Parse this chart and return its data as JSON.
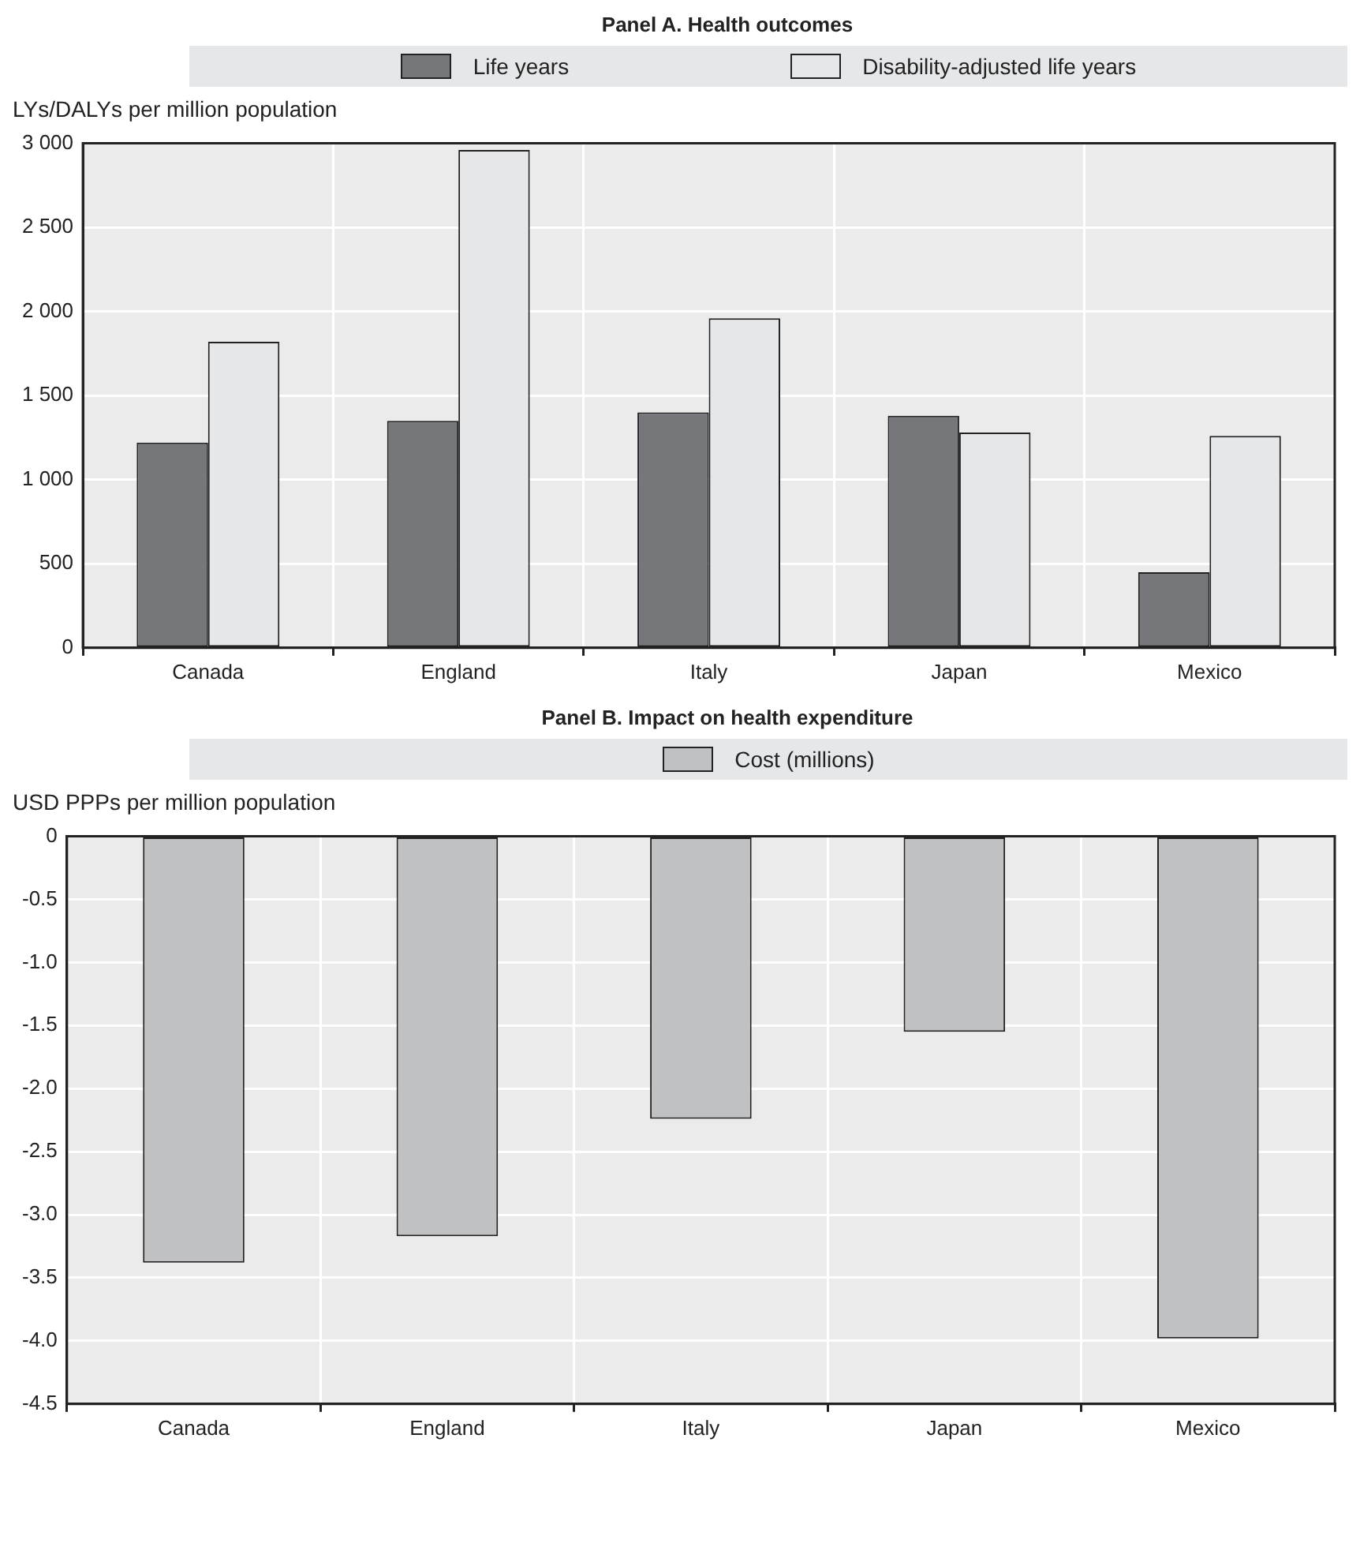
{
  "chart_data": [
    {
      "type": "bar",
      "title": "Panel A. Health outcomes",
      "ylabel": "LYs/DALYs per million population",
      "categories": [
        "Canada",
        "England",
        "Italy",
        "Japan",
        "Mexico"
      ],
      "series": [
        {
          "name": "Life years",
          "color": "#76777b",
          "values": [
            1220,
            1350,
            1400,
            1380,
            450
          ]
        },
        {
          "name": "Disability-adjusted life years",
          "color": "#e6e7e9",
          "values": [
            1820,
            2960,
            1960,
            1280,
            1260
          ]
        }
      ],
      "ylim": [
        0,
        3000
      ],
      "yticks": [
        {
          "value": 0,
          "label": "0"
        },
        {
          "value": 500,
          "label": "500"
        },
        {
          "value": 1000,
          "label": "1 000"
        },
        {
          "value": 1500,
          "label": "1 500"
        },
        {
          "value": 2000,
          "label": "2 000"
        },
        {
          "value": 2500,
          "label": "2 500"
        },
        {
          "value": 3000,
          "label": "3 000"
        }
      ],
      "grid": true,
      "legend": "top"
    },
    {
      "type": "bar",
      "title": "Panel B. Impact on health expenditure",
      "ylabel": "USD PPPs per million population",
      "categories": [
        "Canada",
        "England",
        "Italy",
        "Japan",
        "Mexico"
      ],
      "series": [
        {
          "name": "Cost (millions)",
          "color": "#c0c1c3",
          "values": [
            -3.38,
            -3.17,
            -2.24,
            -1.55,
            -3.98
          ]
        }
      ],
      "ylim": [
        -4.5,
        0
      ],
      "yticks": [
        {
          "value": -4.5,
          "label": "-4.5"
        },
        {
          "value": -4,
          "label": "-4.0"
        },
        {
          "value": -3.5,
          "label": "-3.5"
        },
        {
          "value": -3,
          "label": "-3.0"
        },
        {
          "value": -2.5,
          "label": "-2.5"
        },
        {
          "value": -2,
          "label": "-2.0"
        },
        {
          "value": -1.5,
          "label": "-1.5"
        },
        {
          "value": -1,
          "label": "-1.0"
        },
        {
          "value": -0.5,
          "label": "-0.5"
        },
        {
          "value": 0,
          "label": "0"
        }
      ],
      "grid": true,
      "legend": "top"
    }
  ]
}
